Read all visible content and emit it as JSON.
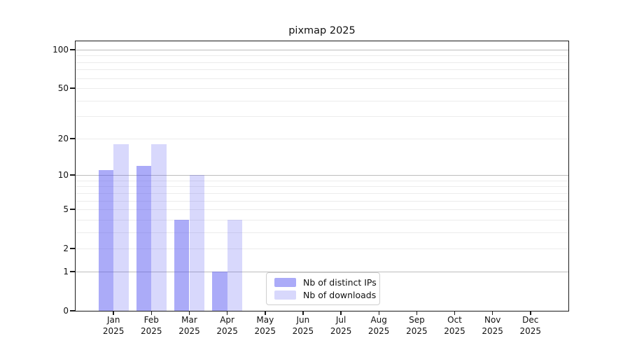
{
  "title": "pixmap 2025",
  "colors": {
    "bar_distinct_ips": "rgba(77,77,240,0.47)",
    "bar_downloads": "rgba(77,77,240,0.22)",
    "legend_swatch_distinct_ips": "#ababf8",
    "legend_swatch_downloads": "#d8d8fc",
    "grid_major": "#bdbdbd",
    "grid_minor": "#ececec",
    "spine": "#1a1a1a",
    "legend_border": "#cfcfcf"
  },
  "legend": {
    "items": [
      {
        "label": "Nb of distinct IPs",
        "swatch": "legend_swatch_distinct_ips"
      },
      {
        "label": "Nb of downloads",
        "swatch": "legend_swatch_downloads"
      }
    ]
  },
  "y_axis": {
    "scale": "log1p",
    "tick_values": [
      0,
      1,
      2,
      5,
      10,
      20,
      50,
      100
    ],
    "tick_labels": [
      "0",
      "1",
      "2",
      "5",
      "10",
      "20",
      "50",
      "100"
    ],
    "grid_major_values": [
      1,
      10,
      100
    ],
    "grid_minor_values": [
      2,
      3,
      4,
      5,
      6,
      7,
      8,
      9,
      20,
      30,
      40,
      50,
      60,
      70,
      80,
      90
    ]
  },
  "x_axis": {
    "months": [
      "Jan",
      "Feb",
      "Mar",
      "Apr",
      "May",
      "Jun",
      "Jul",
      "Aug",
      "Sep",
      "Oct",
      "Nov",
      "Dec"
    ],
    "year": "2025"
  },
  "chart_data": {
    "type": "bar",
    "title": "pixmap 2025",
    "categories": [
      "Jan 2025",
      "Feb 2025",
      "Mar 2025",
      "Apr 2025",
      "May 2025",
      "Jun 2025",
      "Jul 2025",
      "Aug 2025",
      "Sep 2025",
      "Oct 2025",
      "Nov 2025",
      "Dec 2025"
    ],
    "series": [
      {
        "name": "Nb of distinct IPs",
        "key": "distinct_ips",
        "values": [
          11,
          12,
          4,
          1,
          0,
          0,
          0,
          0,
          0,
          0,
          0,
          0
        ]
      },
      {
        "name": "Nb of downloads",
        "key": "downloads",
        "values": [
          18,
          18,
          10,
          4,
          0,
          0,
          0,
          0,
          0,
          0,
          0,
          0
        ]
      }
    ],
    "xlabel": "",
    "ylabel": "",
    "yscale": "log1p",
    "yticks": [
      0,
      1,
      2,
      5,
      10,
      20,
      50,
      100
    ],
    "ylim": [
      0,
      116
    ],
    "grid": "horizontal",
    "legend_position": "inside lower center"
  }
}
